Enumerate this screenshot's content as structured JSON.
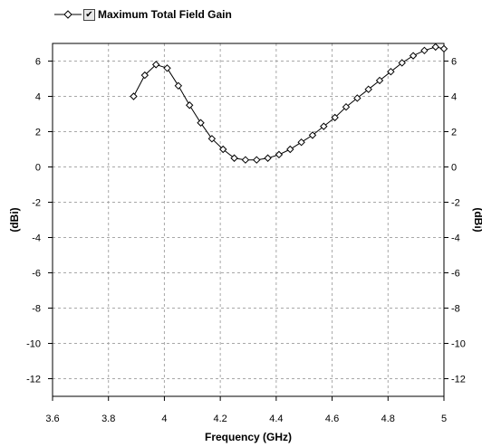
{
  "chart_data": {
    "type": "line",
    "legend": {
      "label": "Maximum Total Field Gain",
      "checked": true,
      "checkmark": "✔",
      "placement": "top-left"
    },
    "xlabel": "Frequency (GHz)",
    "ylabel_left": "(dBi)",
    "ylabel_right": "(dBi)",
    "xlim": [
      3.6,
      5.0
    ],
    "ylim": [
      -13,
      7
    ],
    "xticks": [
      3.6,
      3.8,
      4.0,
      4.2,
      4.4,
      4.6,
      4.8,
      5.0
    ],
    "xtick_labels": [
      "3.6",
      "3.8",
      "4",
      "4.2",
      "4.4",
      "4.6",
      "4.8",
      "5"
    ],
    "yticks": [
      6,
      4,
      2,
      0,
      -2,
      -4,
      -6,
      -8,
      -10,
      -12
    ],
    "ytick_labels": [
      "6",
      "4",
      "2",
      "0",
      "-2",
      "-4",
      "-6",
      "-8",
      "-10",
      "-12"
    ],
    "grid": true,
    "line_color": "#000000",
    "marker": "diamond-open",
    "series": [
      {
        "name": "Maximum Total Field Gain",
        "x": [
          3.89,
          3.93,
          3.97,
          4.01,
          4.05,
          4.09,
          4.13,
          4.17,
          4.21,
          4.25,
          4.29,
          4.33,
          4.37,
          4.41,
          4.45,
          4.49,
          4.53,
          4.57,
          4.61,
          4.65,
          4.69,
          4.73,
          4.77,
          4.81,
          4.85,
          4.89,
          4.93,
          4.97,
          5.0
        ],
        "y": [
          4.0,
          5.2,
          5.8,
          5.6,
          4.6,
          3.5,
          2.5,
          1.6,
          1.0,
          0.5,
          0.4,
          0.4,
          0.5,
          0.7,
          1.0,
          1.4,
          1.8,
          2.3,
          2.8,
          3.4,
          3.9,
          4.4,
          4.9,
          5.4,
          5.9,
          6.3,
          6.6,
          6.8,
          6.7
        ]
      }
    ]
  }
}
